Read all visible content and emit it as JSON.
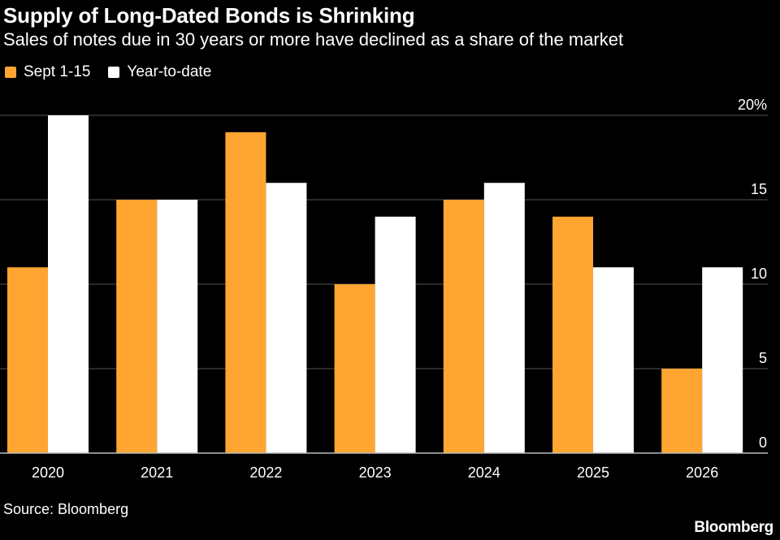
{
  "header": {
    "title": "Supply of Long-Dated Bonds is Shrinking",
    "subtitle": "Sales of notes due in 30 years or more have declined as a share of the market"
  },
  "footer": {
    "source": "Source: Bloomberg",
    "brand": "Bloomberg"
  },
  "colors": {
    "background": "#000000",
    "sept": "#FFA531",
    "ytd": "#FFFFFF",
    "grid": "#555555"
  },
  "chart_data": {
    "type": "bar",
    "categories": [
      "2020",
      "2021",
      "2022",
      "2023",
      "2024",
      "2025",
      "2026"
    ],
    "series": [
      {
        "name": "Sept 1-15",
        "values": [
          11,
          15,
          19,
          10,
          15,
          14,
          5
        ]
      },
      {
        "name": "Year-to-date",
        "values": [
          20,
          15,
          16,
          14,
          16,
          11,
          11
        ]
      }
    ],
    "ylim": [
      0,
      20
    ],
    "yticks": [
      0,
      5,
      10,
      15,
      20
    ],
    "ytick_labels": [
      "0",
      "5",
      "10",
      "15",
      "20%"
    ],
    "y_axis_side": "right",
    "grid": true,
    "legend_position": "top-left"
  }
}
